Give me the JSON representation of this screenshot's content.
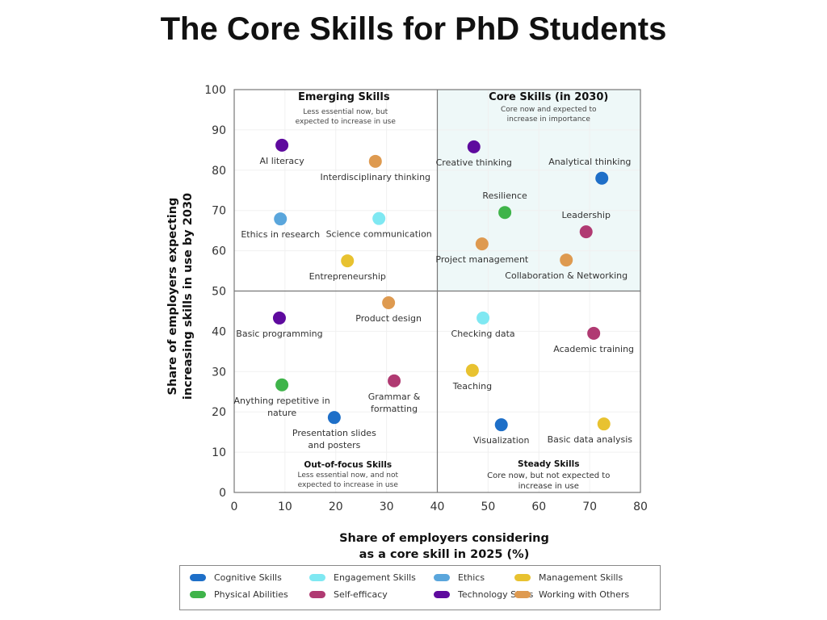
{
  "chart_data": {
    "type": "scatter",
    "title": "The Core Skills for PhD Students",
    "xlabel": [
      "Share of employers considering",
      "as a core skill in 2025 (%)"
    ],
    "ylabel": [
      "Share of employers expecting",
      "increasing skills in use by 2030"
    ],
    "xlim": [
      0,
      80
    ],
    "ylim": [
      0,
      100
    ],
    "xticks": [
      0,
      10,
      20,
      30,
      40,
      50,
      60,
      70,
      80
    ],
    "yticks": [
      0,
      10,
      20,
      30,
      40,
      50,
      60,
      70,
      80,
      90,
      100
    ],
    "grid": true,
    "quadrant_split": {
      "x": 40,
      "y": 50
    },
    "highlight_color": "#eef8f8",
    "quadrants": [
      {
        "title": "Emerging Skills",
        "subtitle": [
          "Less essential now, but",
          "expected to increase in use"
        ]
      },
      {
        "title": "Core Skills (in 2030)",
        "subtitle": [
          "Core now and expected to",
          "increase in importance"
        ]
      },
      {
        "title": "Out-of-focus Skills",
        "subtitle": [
          "Less essential now, and not",
          "expected to increase in use"
        ]
      },
      {
        "title": "Steady Skills",
        "subtitle": [
          "Core now, but not expected to",
          "increase in use"
        ]
      }
    ],
    "categories": [
      {
        "name": "Cognitive Skills",
        "color": "#1e6fc8"
      },
      {
        "name": "Engagement Skills",
        "color": "#7fe8f2"
      },
      {
        "name": "Ethics",
        "color": "#5aa6dc"
      },
      {
        "name": "Management Skills",
        "color": "#e8c230"
      },
      {
        "name": "Physical Abilities",
        "color": "#3fb44a"
      },
      {
        "name": "Self-efficacy",
        "color": "#b03a72"
      },
      {
        "name": "Technology Skills",
        "color": "#5e0a9e"
      },
      {
        "name": "Working with Others",
        "color": "#de9a50"
      }
    ],
    "legend_placement": "bottom",
    "points": [
      {
        "label": [
          "AI literacy"
        ],
        "x": 9.4,
        "y": 86.2,
        "category": "Technology Skills",
        "label_pos": "below"
      },
      {
        "label": [
          "Interdisciplinary thinking"
        ],
        "x": 27.8,
        "y": 82.2,
        "category": "Working with Others",
        "label_pos": "below"
      },
      {
        "label": [
          "Ethics in research"
        ],
        "x": 9.1,
        "y": 67.9,
        "category": "Ethics",
        "label_pos": "below"
      },
      {
        "label": [
          "Science communication"
        ],
        "x": 28.5,
        "y": 68,
        "category": "Engagement Skills",
        "label_pos": "below"
      },
      {
        "label": [
          "Entrepreneurship"
        ],
        "x": 22.3,
        "y": 57.5,
        "category": "Management Skills",
        "label_pos": "below"
      },
      {
        "label": [
          "Creative thinking"
        ],
        "x": 47.2,
        "y": 85.8,
        "category": "Technology Skills",
        "label_pos": "below"
      },
      {
        "label": [
          "Analytical thinking"
        ],
        "x": 72.4,
        "y": 78,
        "category": "Cognitive Skills",
        "label_pos": "above"
      },
      {
        "label": [
          "Resilience"
        ],
        "x": 53.3,
        "y": 69.5,
        "category": "Physical Abilities",
        "label_pos": "above"
      },
      {
        "label": [
          "Leadership"
        ],
        "x": 69.3,
        "y": 64.7,
        "category": "Self-efficacy",
        "label_pos": "above"
      },
      {
        "label": [
          "Project management"
        ],
        "x": 48.8,
        "y": 61.7,
        "category": "Working with Others",
        "label_pos": "below"
      },
      {
        "label": [
          "Collaboration & Networking"
        ],
        "x": 65.4,
        "y": 57.7,
        "category": "Working with Others",
        "label_pos": "below"
      },
      {
        "label": [
          "Product design"
        ],
        "x": 30.4,
        "y": 47.1,
        "category": "Working with Others",
        "label_pos": "below"
      },
      {
        "label": [
          "Basic programming"
        ],
        "x": 8.9,
        "y": 43.3,
        "category": "Technology Skills",
        "label_pos": "below"
      },
      {
        "label": [
          "Checking data"
        ],
        "x": 49,
        "y": 43.3,
        "category": "Engagement Skills",
        "label_pos": "below"
      },
      {
        "label": [
          "Academic training"
        ],
        "x": 70.8,
        "y": 39.5,
        "category": "Self-efficacy",
        "label_pos": "below"
      },
      {
        "label": [
          "Teaching"
        ],
        "x": 46.9,
        "y": 30.3,
        "category": "Management Skills",
        "label_pos": "below"
      },
      {
        "label": [
          "Anything repetitive in",
          "nature"
        ],
        "x": 9.4,
        "y": 26.7,
        "category": "Physical Abilities",
        "label_pos": "below"
      },
      {
        "label": [
          "Grammar &",
          "formatting"
        ],
        "x": 31.5,
        "y": 27.7,
        "category": "Self-efficacy",
        "label_pos": "below"
      },
      {
        "label": [
          "Presentation slides",
          "and posters"
        ],
        "x": 19.7,
        "y": 18.6,
        "category": "Cognitive Skills",
        "label_pos": "below"
      },
      {
        "label": [
          "Visualization"
        ],
        "x": 52.6,
        "y": 16.8,
        "category": "Cognitive Skills",
        "label_pos": "below"
      },
      {
        "label": [
          "Basic data analysis"
        ],
        "x": 72.8,
        "y": 17,
        "category": "Management Skills",
        "label_pos": "below"
      }
    ]
  }
}
